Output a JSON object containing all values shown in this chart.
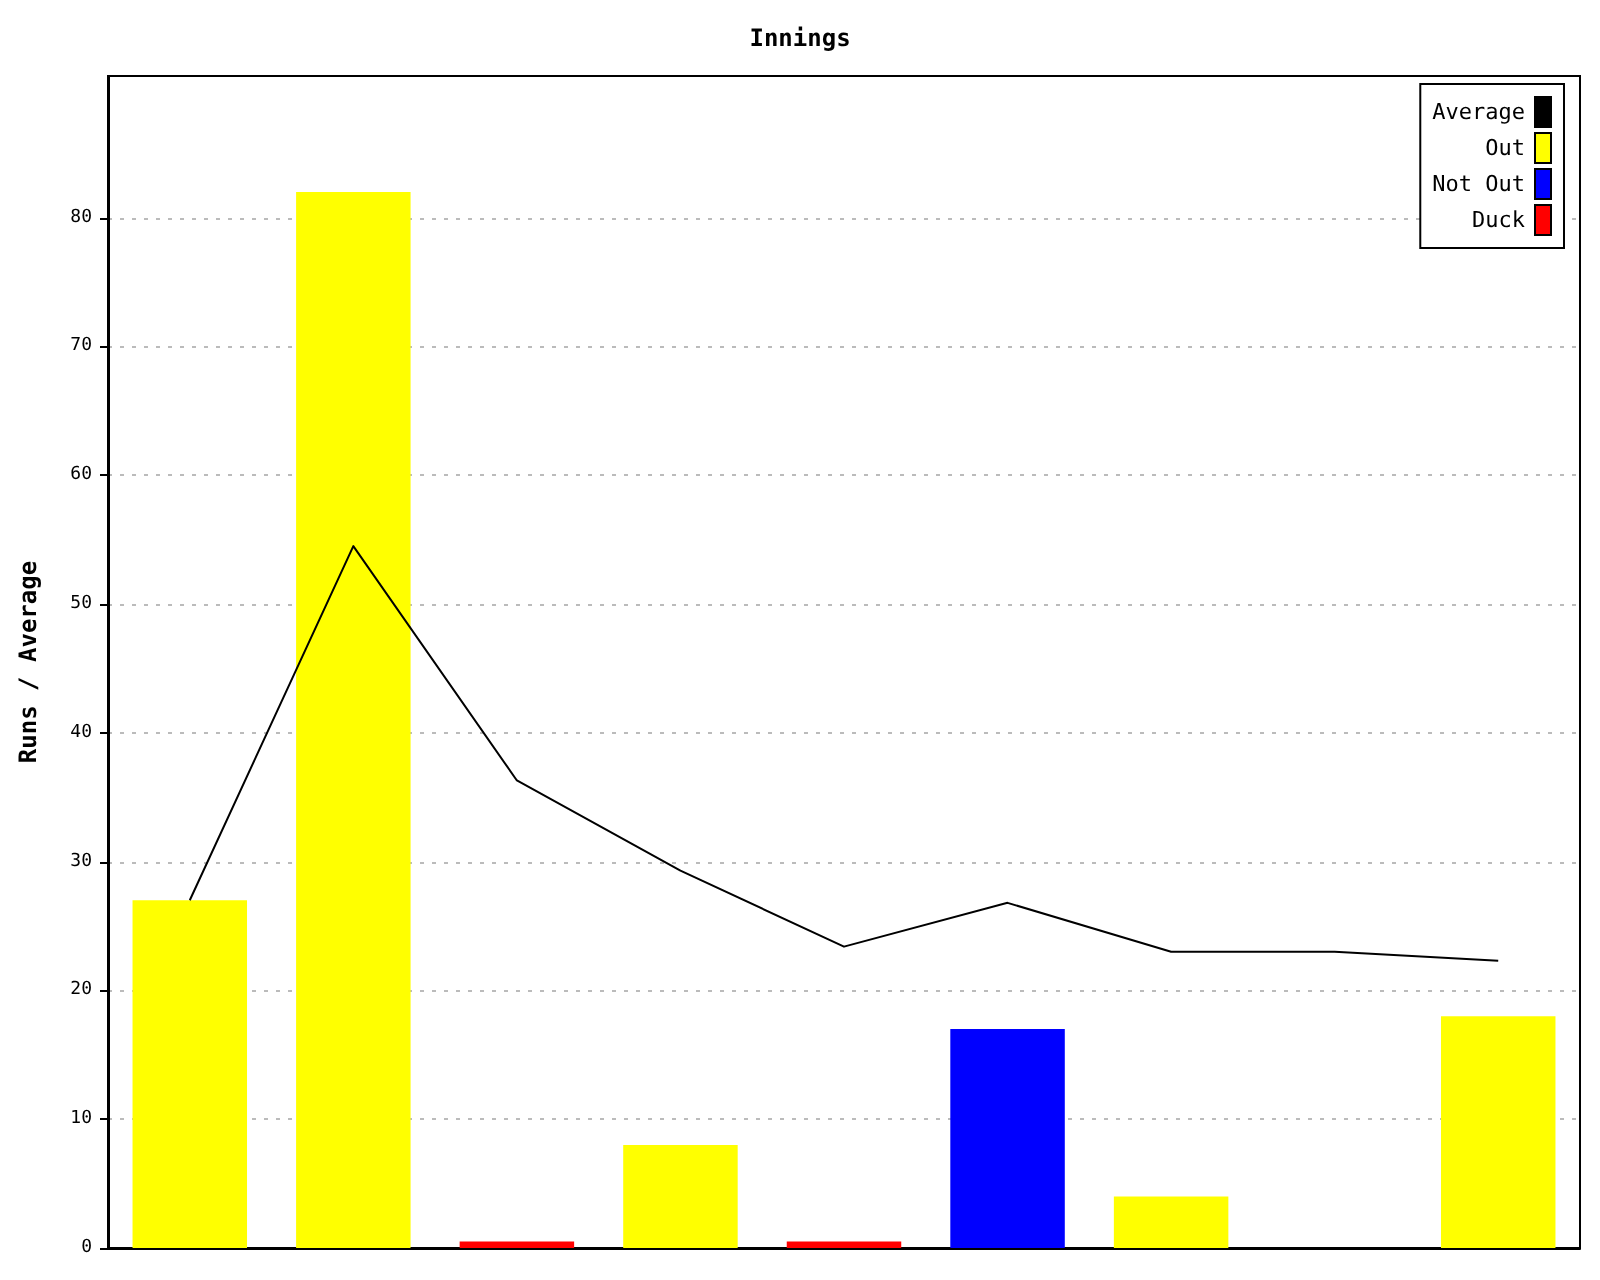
{
  "chart_data": {
    "type": "bar",
    "title": "Innings",
    "ylabel": "Runs / Average",
    "categories": [
      null,
      null,
      null,
      null,
      null,
      null,
      null,
      null,
      null
    ],
    "stacked": true,
    "ylim": [
      0,
      91
    ],
    "yticks": [
      0,
      10,
      20,
      30,
      40,
      50,
      60,
      70,
      80
    ],
    "grid": "y",
    "legend": "top right",
    "series": [
      {
        "name": "Average",
        "type": "line",
        "color": "#000000",
        "marker": "none",
        "values": [
          27,
          54.5,
          36.3,
          29.3,
          23.4,
          26.8,
          23,
          23,
          22.3
        ]
      },
      {
        "name": "Out",
        "color": "#ffff00",
        "values": [
          27,
          82,
          null,
          8,
          null,
          null,
          4,
          null,
          18
        ]
      },
      {
        "name": "Not Out",
        "color": "#0000ff",
        "values": [
          null,
          null,
          null,
          null,
          null,
          17,
          null,
          null,
          null
        ]
      },
      {
        "name": "Duck",
        "color": "#ff0000",
        "values": [
          null,
          null,
          0.5,
          null,
          0.5,
          null,
          null,
          null,
          null
        ]
      }
    ]
  }
}
